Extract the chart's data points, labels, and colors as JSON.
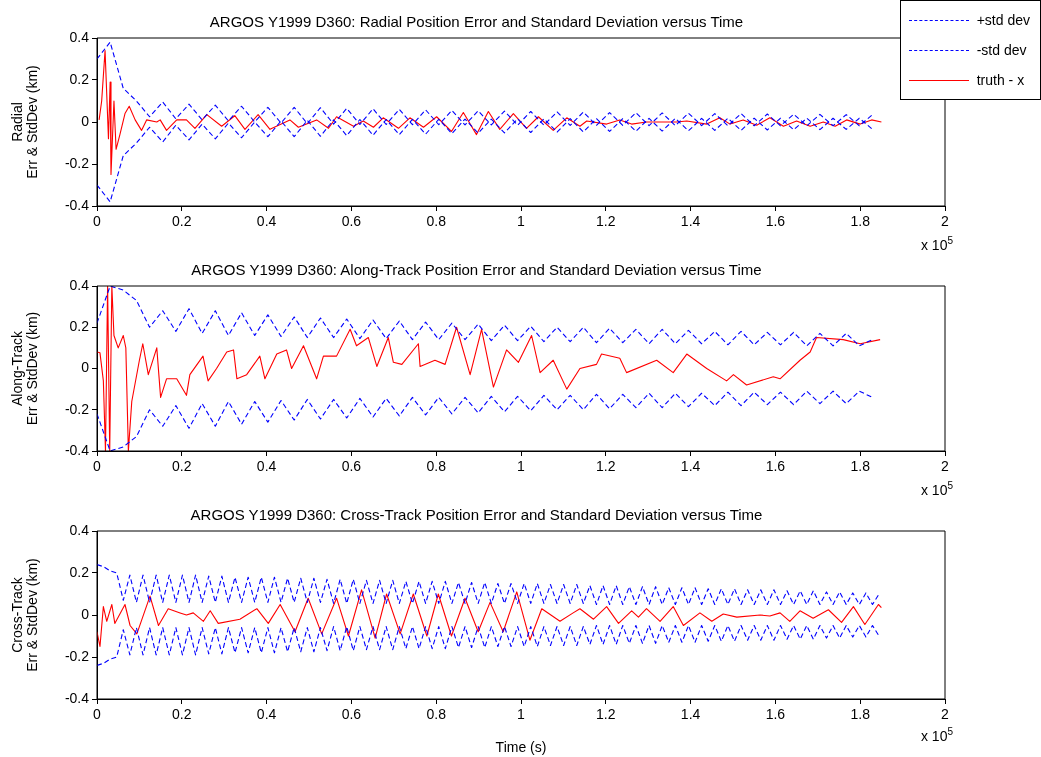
{
  "chart_data": [
    {
      "type": "line",
      "title": "ARGOS Y1999 D360: Radial Position Error and Standard Deviation versus Time",
      "ylabel": "Radial\nErr & StdDev (km)",
      "annotations": [
        "x 10$^{5}$"
      ],
      "xlim": [
        0,
        2
      ],
      "ylim": [
        -0.4,
        0.4
      ],
      "xticks": [
        0,
        0.2,
        0.4,
        0.6,
        0.8,
        1,
        1.2,
        1.4,
        1.6,
        1.8,
        2
      ],
      "yticks": [
        -0.4,
        -0.2,
        0,
        0.2,
        0.4
      ],
      "grid": false,
      "legend": "top right",
      "marker": "none",
      "x": [
        0,
        0.031,
        0.062,
        0.093,
        0.124,
        0.155,
        0.186,
        0.217,
        0.248,
        0.279,
        0.31,
        0.341,
        0.372,
        0.403,
        0.434,
        0.465,
        0.496,
        0.527,
        0.558,
        0.589,
        0.62,
        0.651,
        0.682,
        0.713,
        0.744,
        0.775,
        0.806,
        0.837,
        0.868,
        0.899,
        0.93,
        0.961,
        0.992,
        1.023,
        1.054,
        1.085,
        1.116,
        1.147,
        1.178,
        1.209,
        1.24,
        1.271,
        1.302,
        1.333,
        1.364,
        1.395,
        1.426,
        1.457,
        1.488,
        1.519,
        1.55,
        1.581,
        1.612,
        1.643,
        1.674,
        1.705,
        1.736,
        1.767,
        1.798,
        1.829
      ],
      "series": [
        {
          "name": "+std dev",
          "color": "#0000ff",
          "line_style": "dashed",
          "values": [
            0.3,
            0.38,
            0.16,
            0.1,
            0.025,
            0.095,
            0.015,
            0.085,
            0.01,
            0.08,
            0.005,
            0.075,
            0.0,
            0.07,
            -0.005,
            0.07,
            -0.008,
            0.068,
            -0.01,
            0.065,
            -0.012,
            0.063,
            -0.012,
            0.06,
            -0.013,
            0.058,
            -0.013,
            0.055,
            -0.014,
            0.053,
            -0.014,
            0.052,
            -0.015,
            0.05,
            -0.015,
            0.048,
            -0.016,
            0.047,
            -0.016,
            0.045,
            -0.016,
            0.044,
            -0.017,
            0.043,
            -0.017,
            0.042,
            -0.017,
            0.04,
            -0.018,
            0.04,
            -0.018,
            0.038,
            -0.018,
            0.037,
            -0.018,
            0.036,
            -0.018,
            0.035,
            -0.018,
            0.035
          ]
        },
        {
          "name": "-std dev",
          "color": "#0000ff",
          "line_style": "dashed",
          "values": [
            -0.3,
            -0.38,
            -0.16,
            -0.1,
            -0.025,
            -0.095,
            -0.015,
            -0.085,
            -0.01,
            -0.08,
            -0.005,
            -0.075,
            0.0,
            -0.07,
            0.005,
            -0.07,
            0.008,
            -0.068,
            0.01,
            -0.065,
            0.012,
            -0.063,
            0.012,
            -0.06,
            0.013,
            -0.058,
            0.013,
            -0.055,
            0.014,
            -0.053,
            0.014,
            -0.052,
            0.015,
            -0.05,
            0.015,
            -0.048,
            0.016,
            -0.047,
            0.016,
            -0.045,
            0.016,
            -0.044,
            0.017,
            -0.043,
            0.017,
            -0.042,
            0.017,
            -0.04,
            0.018,
            -0.04,
            0.018,
            -0.038,
            0.018,
            -0.037,
            0.018,
            -0.036,
            0.018,
            -0.035,
            0.018,
            -0.035
          ]
        },
        {
          "name": "truth - x",
          "color": "#ff0000",
          "line_style": "solid",
          "x": [
            0.005,
            0.011,
            0.019,
            0.027,
            0.031,
            0.033,
            0.04,
            0.045,
            0.054,
            0.066,
            0.076,
            0.09,
            0.105,
            0.117,
            0.141,
            0.149,
            0.164,
            0.188,
            0.211,
            0.231,
            0.259,
            0.294,
            0.325,
            0.349,
            0.38,
            0.408,
            0.455,
            0.475,
            0.518,
            0.546,
            0.565,
            0.605,
            0.628,
            0.652,
            0.675,
            0.711,
            0.738,
            0.77,
            0.801,
            0.836,
            0.864,
            0.895,
            0.923,
            0.95,
            0.982,
            1.013,
            1.041,
            1.076,
            1.108,
            1.139,
            1.155,
            1.202,
            1.233,
            1.261,
            1.296,
            1.367,
            1.391,
            1.438,
            1.469,
            1.493,
            1.524,
            1.556,
            1.587,
            1.619,
            1.65,
            1.682,
            1.713,
            1.741,
            1.768,
            1.8,
            1.827,
            1.85
          ],
          "values": [
            0.01,
            0.1,
            0.34,
            -0.08,
            0.19,
            -0.25,
            0.1,
            -0.13,
            -0.06,
            0.04,
            0.075,
            0.01,
            -0.04,
            0.01,
            0.0,
            0.01,
            -0.04,
            0.01,
            0.01,
            -0.03,
            0.035,
            -0.02,
            0.03,
            -0.035,
            0.035,
            -0.035,
            0.01,
            -0.025,
            0.01,
            -0.03,
            0.025,
            -0.02,
            0.005,
            -0.025,
            0.02,
            -0.03,
            0.02,
            -0.025,
            0.025,
            -0.045,
            0.045,
            -0.06,
            0.05,
            -0.035,
            0.04,
            -0.03,
            0.025,
            -0.04,
            0.02,
            -0.02,
            0.005,
            -0.01,
            0.01,
            -0.01,
            0.0,
            0.0,
            0.005,
            -0.01,
            0.02,
            -0.01,
            0.01,
            -0.015,
            0.02,
            -0.02,
            0.005,
            -0.02,
            0.0,
            -0.02,
            0.01,
            -0.01,
            0.01,
            0.0
          ]
        }
      ]
    },
    {
      "type": "line",
      "title": "ARGOS Y1999 D360: Along-Track Position Error and Standard Deviation versus Time",
      "ylabel": "Along-Track\nErr & StdDev (km)",
      "annotations": [
        "x 10$^{5}$"
      ],
      "xlim": [
        0,
        2
      ],
      "ylim": [
        -0.4,
        0.4
      ],
      "xticks": [
        0,
        0.2,
        0.4,
        0.6,
        0.8,
        1,
        1.2,
        1.4,
        1.6,
        1.8,
        2
      ],
      "yticks": [
        -0.4,
        -0.2,
        0,
        0.2,
        0.4
      ],
      "grid": false,
      "marker": "none",
      "x": [
        0,
        0.031,
        0.062,
        0.093,
        0.124,
        0.155,
        0.186,
        0.217,
        0.248,
        0.279,
        0.31,
        0.341,
        0.372,
        0.403,
        0.434,
        0.465,
        0.496,
        0.527,
        0.558,
        0.589,
        0.62,
        0.651,
        0.682,
        0.713,
        0.744,
        0.775,
        0.806,
        0.837,
        0.868,
        0.899,
        0.93,
        0.961,
        0.992,
        1.023,
        1.054,
        1.085,
        1.116,
        1.147,
        1.178,
        1.209,
        1.24,
        1.271,
        1.302,
        1.333,
        1.364,
        1.395,
        1.426,
        1.457,
        1.488,
        1.519,
        1.55,
        1.581,
        1.612,
        1.643,
        1.674,
        1.705,
        1.736,
        1.767,
        1.798,
        1.829
      ],
      "series": [
        {
          "color": "#0000ff",
          "line_style": "dashed",
          "values": [
            0.22,
            0.4,
            0.38,
            0.33,
            0.2,
            0.28,
            0.18,
            0.29,
            0.17,
            0.28,
            0.16,
            0.27,
            0.16,
            0.26,
            0.155,
            0.25,
            0.15,
            0.245,
            0.15,
            0.24,
            0.145,
            0.235,
            0.145,
            0.23,
            0.14,
            0.225,
            0.14,
            0.22,
            0.14,
            0.215,
            0.135,
            0.21,
            0.135,
            0.205,
            0.13,
            0.2,
            0.13,
            0.2,
            0.125,
            0.195,
            0.125,
            0.19,
            0.12,
            0.19,
            0.12,
            0.185,
            0.12,
            0.18,
            0.115,
            0.18,
            0.115,
            0.175,
            0.115,
            0.175,
            0.11,
            0.17,
            0.11,
            0.17,
            0.11,
            0.14
          ]
        },
        {
          "color": "#0000ff",
          "line_style": "dashed",
          "values": [
            -0.22,
            -0.4,
            -0.38,
            -0.33,
            -0.2,
            -0.28,
            -0.18,
            -0.29,
            -0.17,
            -0.28,
            -0.16,
            -0.27,
            -0.16,
            -0.26,
            -0.155,
            -0.25,
            -0.15,
            -0.245,
            -0.15,
            -0.24,
            -0.145,
            -0.235,
            -0.145,
            -0.23,
            -0.14,
            -0.225,
            -0.14,
            -0.22,
            -0.14,
            -0.215,
            -0.135,
            -0.21,
            -0.135,
            -0.205,
            -0.13,
            -0.2,
            -0.13,
            -0.2,
            -0.125,
            -0.195,
            -0.125,
            -0.19,
            -0.12,
            -0.19,
            -0.12,
            -0.185,
            -0.12,
            -0.18,
            -0.115,
            -0.18,
            -0.115,
            -0.175,
            -0.115,
            -0.175,
            -0.11,
            -0.17,
            -0.11,
            -0.17,
            -0.11,
            -0.14
          ]
        },
        {
          "color": "#ff0000",
          "line_style": "solid",
          "x": [
            0.0,
            0.007,
            0.015,
            0.02,
            0.025,
            0.03,
            0.035,
            0.04,
            0.05,
            0.062,
            0.068,
            0.074,
            0.082,
            0.1,
            0.108,
            0.121,
            0.141,
            0.15,
            0.164,
            0.188,
            0.211,
            0.219,
            0.25,
            0.262,
            0.282,
            0.306,
            0.322,
            0.33,
            0.353,
            0.384,
            0.396,
            0.424,
            0.447,
            0.459,
            0.487,
            0.518,
            0.534,
            0.565,
            0.597,
            0.612,
            0.64,
            0.66,
            0.687,
            0.699,
            0.719,
            0.758,
            0.762,
            0.797,
            0.821,
            0.848,
            0.88,
            0.907,
            0.935,
            0.966,
            0.994,
            1.025,
            1.045,
            1.076,
            1.108,
            1.139,
            1.178,
            1.19,
            1.233,
            1.249,
            1.32,
            1.359,
            1.391,
            1.438,
            1.485,
            1.501,
            1.532,
            1.595,
            1.611,
            1.658,
            1.682,
            1.697,
            1.76,
            1.8,
            1.847
          ],
          "values": [
            0.08,
            0.076,
            -0.06,
            -0.4,
            0.4,
            -0.4,
            0.4,
            0.16,
            0.1,
            0.16,
            0.1,
            -0.4,
            -0.16,
            0.04,
            0.12,
            -0.03,
            0.1,
            -0.14,
            -0.05,
            -0.05,
            -0.13,
            -0.03,
            0.06,
            -0.06,
            0.0,
            0.08,
            0.09,
            -0.05,
            -0.03,
            0.06,
            -0.05,
            0.07,
            0.09,
            0.0,
            0.11,
            -0.05,
            0.06,
            0.06,
            0.19,
            0.11,
            0.15,
            0.01,
            0.15,
            0.03,
            0.02,
            0.12,
            0.01,
            0.04,
            0.02,
            0.2,
            -0.03,
            0.19,
            -0.09,
            0.09,
            0.03,
            0.16,
            -0.02,
            0.04,
            -0.1,
            0.0,
            0.02,
            0.07,
            0.05,
            -0.02,
            0.04,
            -0.02,
            0.07,
            0.0,
            -0.06,
            -0.03,
            -0.08,
            -0.04,
            -0.05,
            0.04,
            0.08,
            0.15,
            0.14,
            0.12,
            0.14
          ]
        }
      ]
    },
    {
      "type": "line",
      "title": "ARGOS Y1999 D360: Cross-Track Position Error and Standard Deviation versus Time",
      "xlabel": "Time (s)",
      "ylabel": "Cross-Track\nErr & StdDev (km)",
      "annotations": [
        "x 10$^{5}$"
      ],
      "xlim": [
        0,
        2
      ],
      "ylim": [
        -0.4,
        0.4
      ],
      "xticks": [
        0,
        0.2,
        0.4,
        0.6,
        0.8,
        1,
        1.2,
        1.4,
        1.6,
        1.8,
        2
      ],
      "yticks": [
        -0.4,
        -0.2,
        0,
        0.2,
        0.4
      ],
      "grid": false,
      "marker": "none",
      "x": [
        0,
        0.0155,
        0.031,
        0.0465,
        0.062,
        0.0775,
        0.093,
        0.1085,
        0.124,
        0.1395,
        0.155,
        0.1705,
        0.186,
        0.2015,
        0.217,
        0.2325,
        0.248,
        0.2635,
        0.279,
        0.2945,
        0.31,
        0.3255,
        0.341,
        0.3565,
        0.372,
        0.3875,
        0.403,
        0.4185,
        0.434,
        0.4495,
        0.465,
        0.4805,
        0.496,
        0.5115,
        0.527,
        0.5425,
        0.558,
        0.5735,
        0.589,
        0.6045,
        0.62,
        0.6355,
        0.651,
        0.6665,
        0.682,
        0.6975,
        0.713,
        0.7285,
        0.744,
        0.7595,
        0.775,
        0.7905,
        0.806,
        0.8215,
        0.837,
        0.8525,
        0.868,
        0.8835,
        0.899,
        0.9145,
        0.93,
        0.9455,
        0.961,
        0.9765,
        0.992,
        1.0075,
        1.023,
        1.0385,
        1.054,
        1.0695,
        1.085,
        1.1005,
        1.116,
        1.1315,
        1.147,
        1.1625,
        1.178,
        1.1935,
        1.209,
        1.2245,
        1.24,
        1.2555,
        1.271,
        1.2865,
        1.302,
        1.3175,
        1.333,
        1.3485,
        1.364,
        1.3795,
        1.395,
        1.4105,
        1.426,
        1.4415,
        1.457,
        1.4725,
        1.488,
        1.5035,
        1.519,
        1.5345,
        1.55,
        1.5655,
        1.581,
        1.5965,
        1.612,
        1.6275,
        1.643,
        1.6585,
        1.674,
        1.6895,
        1.705,
        1.7205,
        1.736,
        1.7515,
        1.767,
        1.7825,
        1.798,
        1.8135,
        1.829,
        1.8445
      ],
      "series": [
        {
          "color": "#0000ff",
          "line_style": "dashed",
          "values": [
            0.24,
            0.23,
            0.21,
            0.2,
            0.07,
            0.19,
            0.06,
            0.19,
            0.06,
            0.19,
            0.06,
            0.19,
            0.06,
            0.19,
            0.06,
            0.19,
            0.06,
            0.185,
            0.06,
            0.185,
            0.06,
            0.18,
            0.06,
            0.18,
            0.06,
            0.18,
            0.06,
            0.18,
            0.06,
            0.175,
            0.06,
            0.175,
            0.06,
            0.175,
            0.06,
            0.17,
            0.055,
            0.17,
            0.055,
            0.17,
            0.055,
            0.165,
            0.055,
            0.165,
            0.055,
            0.165,
            0.055,
            0.16,
            0.055,
            0.16,
            0.055,
            0.16,
            0.055,
            0.16,
            0.055,
            0.155,
            0.055,
            0.155,
            0.055,
            0.155,
            0.055,
            0.15,
            0.055,
            0.15,
            0.055,
            0.15,
            0.055,
            0.15,
            0.055,
            0.145,
            0.055,
            0.145,
            0.055,
            0.145,
            0.055,
            0.14,
            0.05,
            0.14,
            0.05,
            0.14,
            0.05,
            0.135,
            0.05,
            0.135,
            0.05,
            0.135,
            0.05,
            0.13,
            0.05,
            0.13,
            0.05,
            0.13,
            0.05,
            0.125,
            0.05,
            0.125,
            0.05,
            0.125,
            0.05,
            0.12,
            0.05,
            0.12,
            0.05,
            0.12,
            0.05,
            0.115,
            0.05,
            0.115,
            0.05,
            0.115,
            0.05,
            0.11,
            0.05,
            0.11,
            0.05,
            0.105,
            0.05,
            0.105,
            0.05,
            0.1
          ]
        },
        {
          "color": "#0000ff",
          "line_style": "dashed",
          "values": [
            -0.24,
            -0.23,
            -0.21,
            -0.2,
            -0.07,
            -0.19,
            -0.06,
            -0.19,
            -0.06,
            -0.19,
            -0.06,
            -0.19,
            -0.06,
            -0.19,
            -0.06,
            -0.19,
            -0.06,
            -0.185,
            -0.06,
            -0.185,
            -0.06,
            -0.18,
            -0.06,
            -0.18,
            -0.06,
            -0.18,
            -0.06,
            -0.18,
            -0.06,
            -0.175,
            -0.06,
            -0.175,
            -0.06,
            -0.175,
            -0.06,
            -0.17,
            -0.055,
            -0.17,
            -0.055,
            -0.17,
            -0.055,
            -0.165,
            -0.055,
            -0.165,
            -0.055,
            -0.165,
            -0.055,
            -0.16,
            -0.055,
            -0.16,
            -0.055,
            -0.16,
            -0.055,
            -0.16,
            -0.055,
            -0.155,
            -0.055,
            -0.155,
            -0.055,
            -0.155,
            -0.055,
            -0.15,
            -0.055,
            -0.15,
            -0.055,
            -0.15,
            -0.055,
            -0.15,
            -0.055,
            -0.145,
            -0.055,
            -0.145,
            -0.055,
            -0.145,
            -0.055,
            -0.14,
            -0.05,
            -0.14,
            -0.05,
            -0.14,
            -0.05,
            -0.135,
            -0.05,
            -0.135,
            -0.05,
            -0.135,
            -0.05,
            -0.13,
            -0.05,
            -0.13,
            -0.05,
            -0.13,
            -0.05,
            -0.125,
            -0.05,
            -0.125,
            -0.05,
            -0.125,
            -0.05,
            -0.12,
            -0.05,
            -0.12,
            -0.05,
            -0.12,
            -0.05,
            -0.115,
            -0.05,
            -0.115,
            -0.05,
            -0.115,
            -0.05,
            -0.11,
            -0.05,
            -0.11,
            -0.05,
            -0.105,
            -0.05,
            -0.105,
            -0.05,
            -0.1
          ]
        },
        {
          "color": "#ff0000",
          "line_style": "solid",
          "x": [
            0.0,
            0.007,
            0.015,
            0.023,
            0.035,
            0.042,
            0.066,
            0.078,
            0.094,
            0.125,
            0.145,
            0.168,
            0.196,
            0.211,
            0.227,
            0.251,
            0.267,
            0.286,
            0.337,
            0.377,
            0.404,
            0.432,
            0.467,
            0.498,
            0.53,
            0.565,
            0.593,
            0.624,
            0.656,
            0.683,
            0.715,
            0.746,
            0.778,
            0.805,
            0.836,
            0.868,
            0.899,
            0.927,
            0.958,
            0.99,
            1.021,
            1.049,
            1.092,
            1.123,
            1.139,
            1.171,
            1.202,
            1.23,
            1.261,
            1.277,
            1.296,
            1.328,
            1.359,
            1.383,
            1.422,
            1.45,
            1.477,
            1.509,
            1.564,
            1.587,
            1.611,
            1.634,
            1.658,
            1.689,
            1.725,
            1.756,
            1.784,
            1.811,
            1.843,
            1.85
          ],
          "values": [
            -0.08,
            -0.15,
            0.04,
            -0.03,
            0.05,
            -0.04,
            0.05,
            -0.05,
            -0.09,
            0.09,
            -0.05,
            0.03,
            0.01,
            0.0,
            0.01,
            -0.03,
            0.02,
            -0.04,
            -0.02,
            0.03,
            -0.04,
            0.05,
            -0.08,
            0.08,
            -0.09,
            0.08,
            -0.1,
            0.12,
            -0.11,
            0.1,
            -0.09,
            0.1,
            -0.1,
            0.1,
            -0.1,
            0.08,
            -0.08,
            0.06,
            -0.08,
            0.11,
            -0.12,
            0.03,
            -0.03,
            0.01,
            0.03,
            -0.02,
            0.04,
            -0.04,
            0.02,
            -0.01,
            0.03,
            -0.03,
            0.04,
            -0.05,
            0.01,
            -0.03,
            0.005,
            -0.01,
            0.0,
            -0.005,
            0.01,
            -0.03,
            0.02,
            -0.015,
            0.025,
            -0.035,
            0.04,
            -0.045,
            0.05,
            0.035
          ]
        }
      ]
    }
  ]
}
